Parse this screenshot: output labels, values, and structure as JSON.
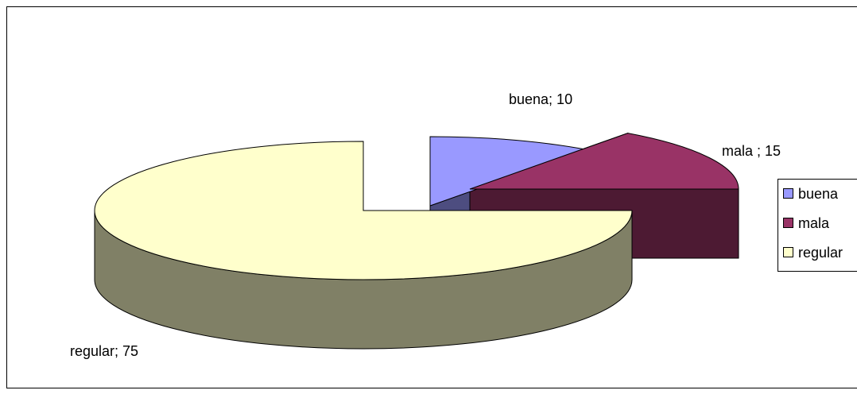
{
  "chart_data": {
    "type": "pie",
    "three_d": true,
    "exploded": true,
    "title": "",
    "slices": [
      {
        "label": "buena",
        "value": 10,
        "data_label": "buena; 10",
        "color": "#9999FF"
      },
      {
        "label": "mala",
        "value": 15,
        "data_label": "mala ; 15",
        "color": "#993366"
      },
      {
        "label": "regular",
        "value": 75,
        "data_label": "regular; 75",
        "color": "#FFFFCC"
      }
    ],
    "legend": {
      "position": "right",
      "entries": [
        "buena",
        "mala",
        "regular"
      ]
    }
  }
}
